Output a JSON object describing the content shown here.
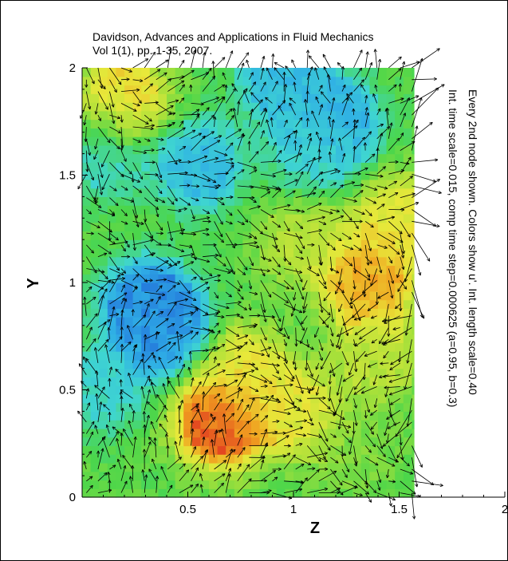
{
  "title_lines": [
    "Davidson, Advances and Applications in Fluid Mechanics",
    "Vol 1(1), pp. 1-35, 2007."
  ],
  "annotation_lines": [
    "Every 2nd node shown. Colors show u'. Int. length scale=0.40",
    "Int. time scale=0.015, comp time step=0.000625 (a=0.95, b=0.3)"
  ],
  "chart_data": {
    "type": "vector-field",
    "xlabel": "Z",
    "ylabel": "Y",
    "xlim": [
      0,
      2
    ],
    "ylim": [
      0,
      2
    ],
    "x_ticks": [
      "0.5",
      "1",
      "1.5",
      "2"
    ],
    "y_ticks": [
      "0",
      "0.5",
      "1",
      "1.5",
      "2"
    ],
    "domain_z_max": 1.57,
    "grid": false,
    "colormap": [
      "#1e5cd6",
      "#2faee6",
      "#3fd6d0",
      "#4bd64b",
      "#a6e03a",
      "#e8e83a",
      "#f0a020",
      "#e03020"
    ],
    "color_blobs_fluctuation_u": [
      {
        "z": 0.2,
        "y": 1.85,
        "v": 0.75
      },
      {
        "z": 0.3,
        "y": 0.9,
        "v": 0.1
      },
      {
        "z": 0.4,
        "y": 0.78,
        "v": 0.08
      },
      {
        "z": 0.1,
        "y": 1.6,
        "v": 0.3
      },
      {
        "z": 0.55,
        "y": 1.55,
        "v": 0.2
      },
      {
        "z": 0.65,
        "y": 0.35,
        "v": 0.95
      },
      {
        "z": 0.75,
        "y": 0.6,
        "v": 0.7
      },
      {
        "z": 0.95,
        "y": 1.95,
        "v": 0.2
      },
      {
        "z": 1.0,
        "y": 0.4,
        "v": 0.7
      },
      {
        "z": 1.05,
        "y": 1.2,
        "v": 0.6
      },
      {
        "z": 1.1,
        "y": 1.6,
        "v": 0.3
      },
      {
        "z": 1.2,
        "y": 1.75,
        "v": 0.15
      },
      {
        "z": 1.35,
        "y": 1.0,
        "v": 0.85
      },
      {
        "z": 1.4,
        "y": 0.65,
        "v": 0.6
      },
      {
        "z": 1.5,
        "y": 1.3,
        "v": 0.7
      },
      {
        "z": 0.1,
        "y": 0.5,
        "v": 0.3
      },
      {
        "z": 1.3,
        "y": 0.2,
        "v": 0.5
      }
    ]
  }
}
